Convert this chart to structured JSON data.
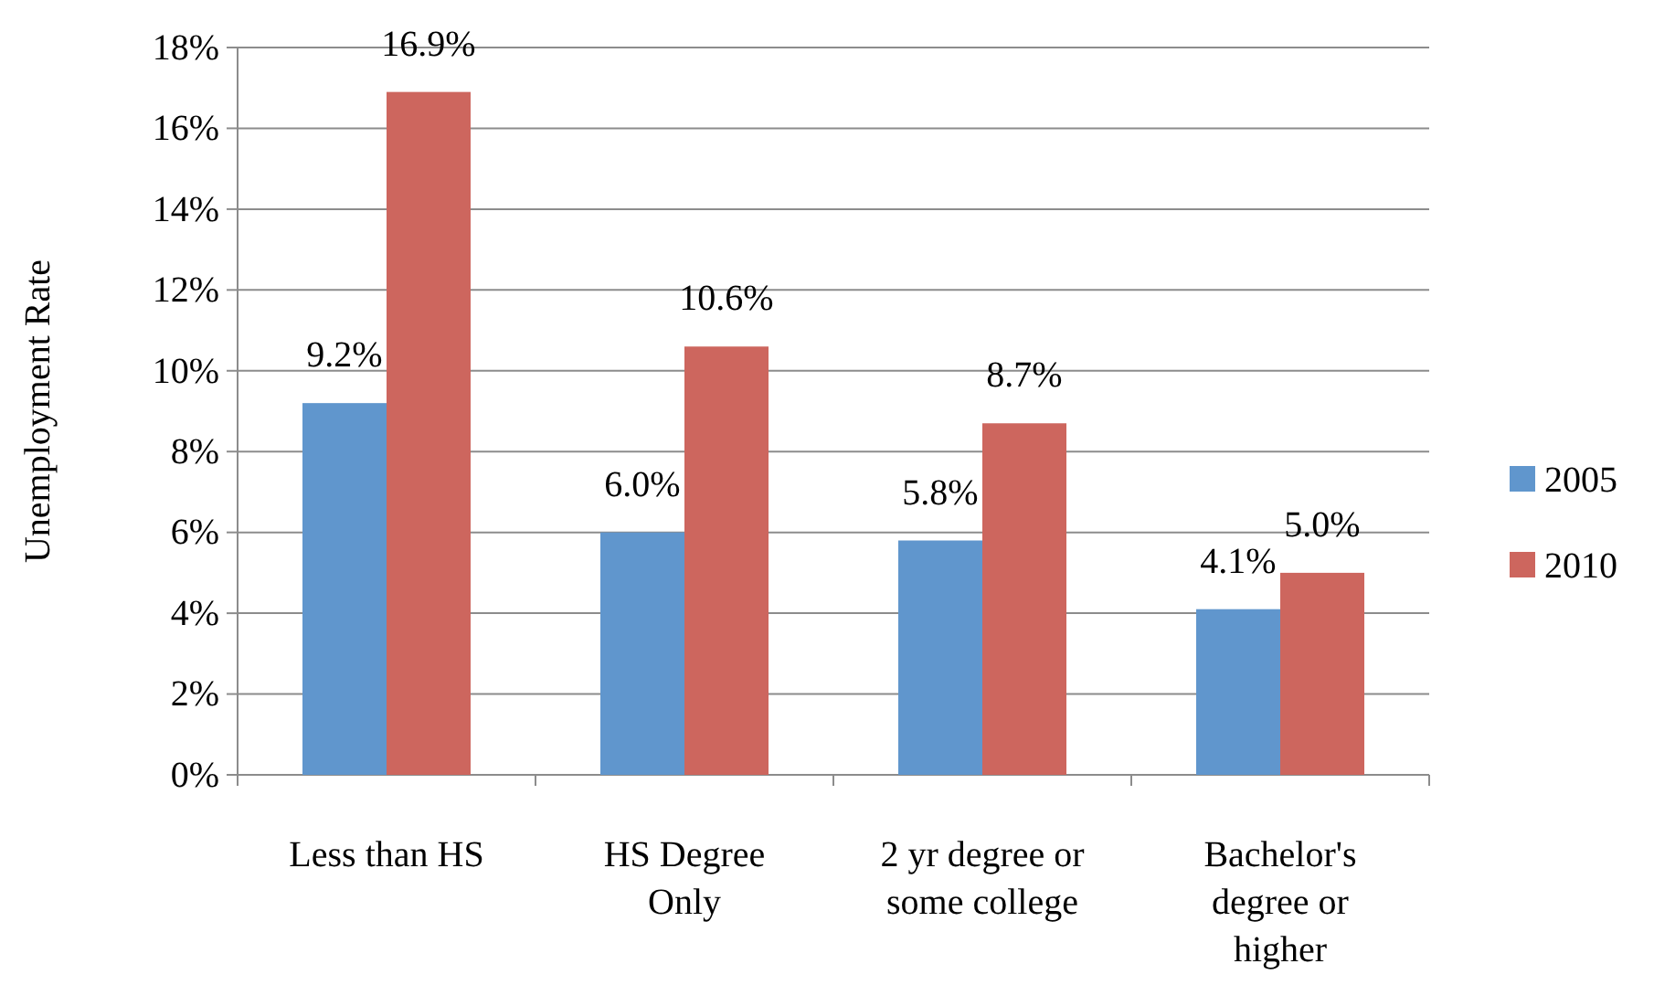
{
  "chart_data": {
    "type": "bar",
    "ylabel": "Unemployment Rate",
    "categories": [
      "Less than HS",
      "HS Degree Only",
      "2 yr degree or some college",
      "Bachelor's degree or higher"
    ],
    "series": [
      {
        "name": "2005",
        "color": "#6096cd",
        "values": [
          9.2,
          6.0,
          5.8,
          4.1
        ],
        "value_labels": [
          "9.2%",
          "6.0%",
          "5.8%",
          "4.1%"
        ]
      },
      {
        "name": "2010",
        "color": "#cd665e",
        "values": [
          16.9,
          10.6,
          8.7,
          5.0
        ],
        "value_labels": [
          "16.9%",
          "10.6%",
          "8.7%",
          "5.0%"
        ]
      }
    ],
    "ylim": [
      0,
      18
    ],
    "yticks": [
      {
        "value": 0,
        "label": "0%"
      },
      {
        "value": 2,
        "label": "2%"
      },
      {
        "value": 4,
        "label": "4%"
      },
      {
        "value": 6,
        "label": "6%"
      },
      {
        "value": 8,
        "label": "8%"
      },
      {
        "value": 10,
        "label": "10%"
      },
      {
        "value": 12,
        "label": "12%"
      },
      {
        "value": 14,
        "label": "14%"
      },
      {
        "value": 16,
        "label": "16%"
      },
      {
        "value": 18,
        "label": "18%"
      }
    ],
    "grid": "y",
    "legend": "right"
  }
}
